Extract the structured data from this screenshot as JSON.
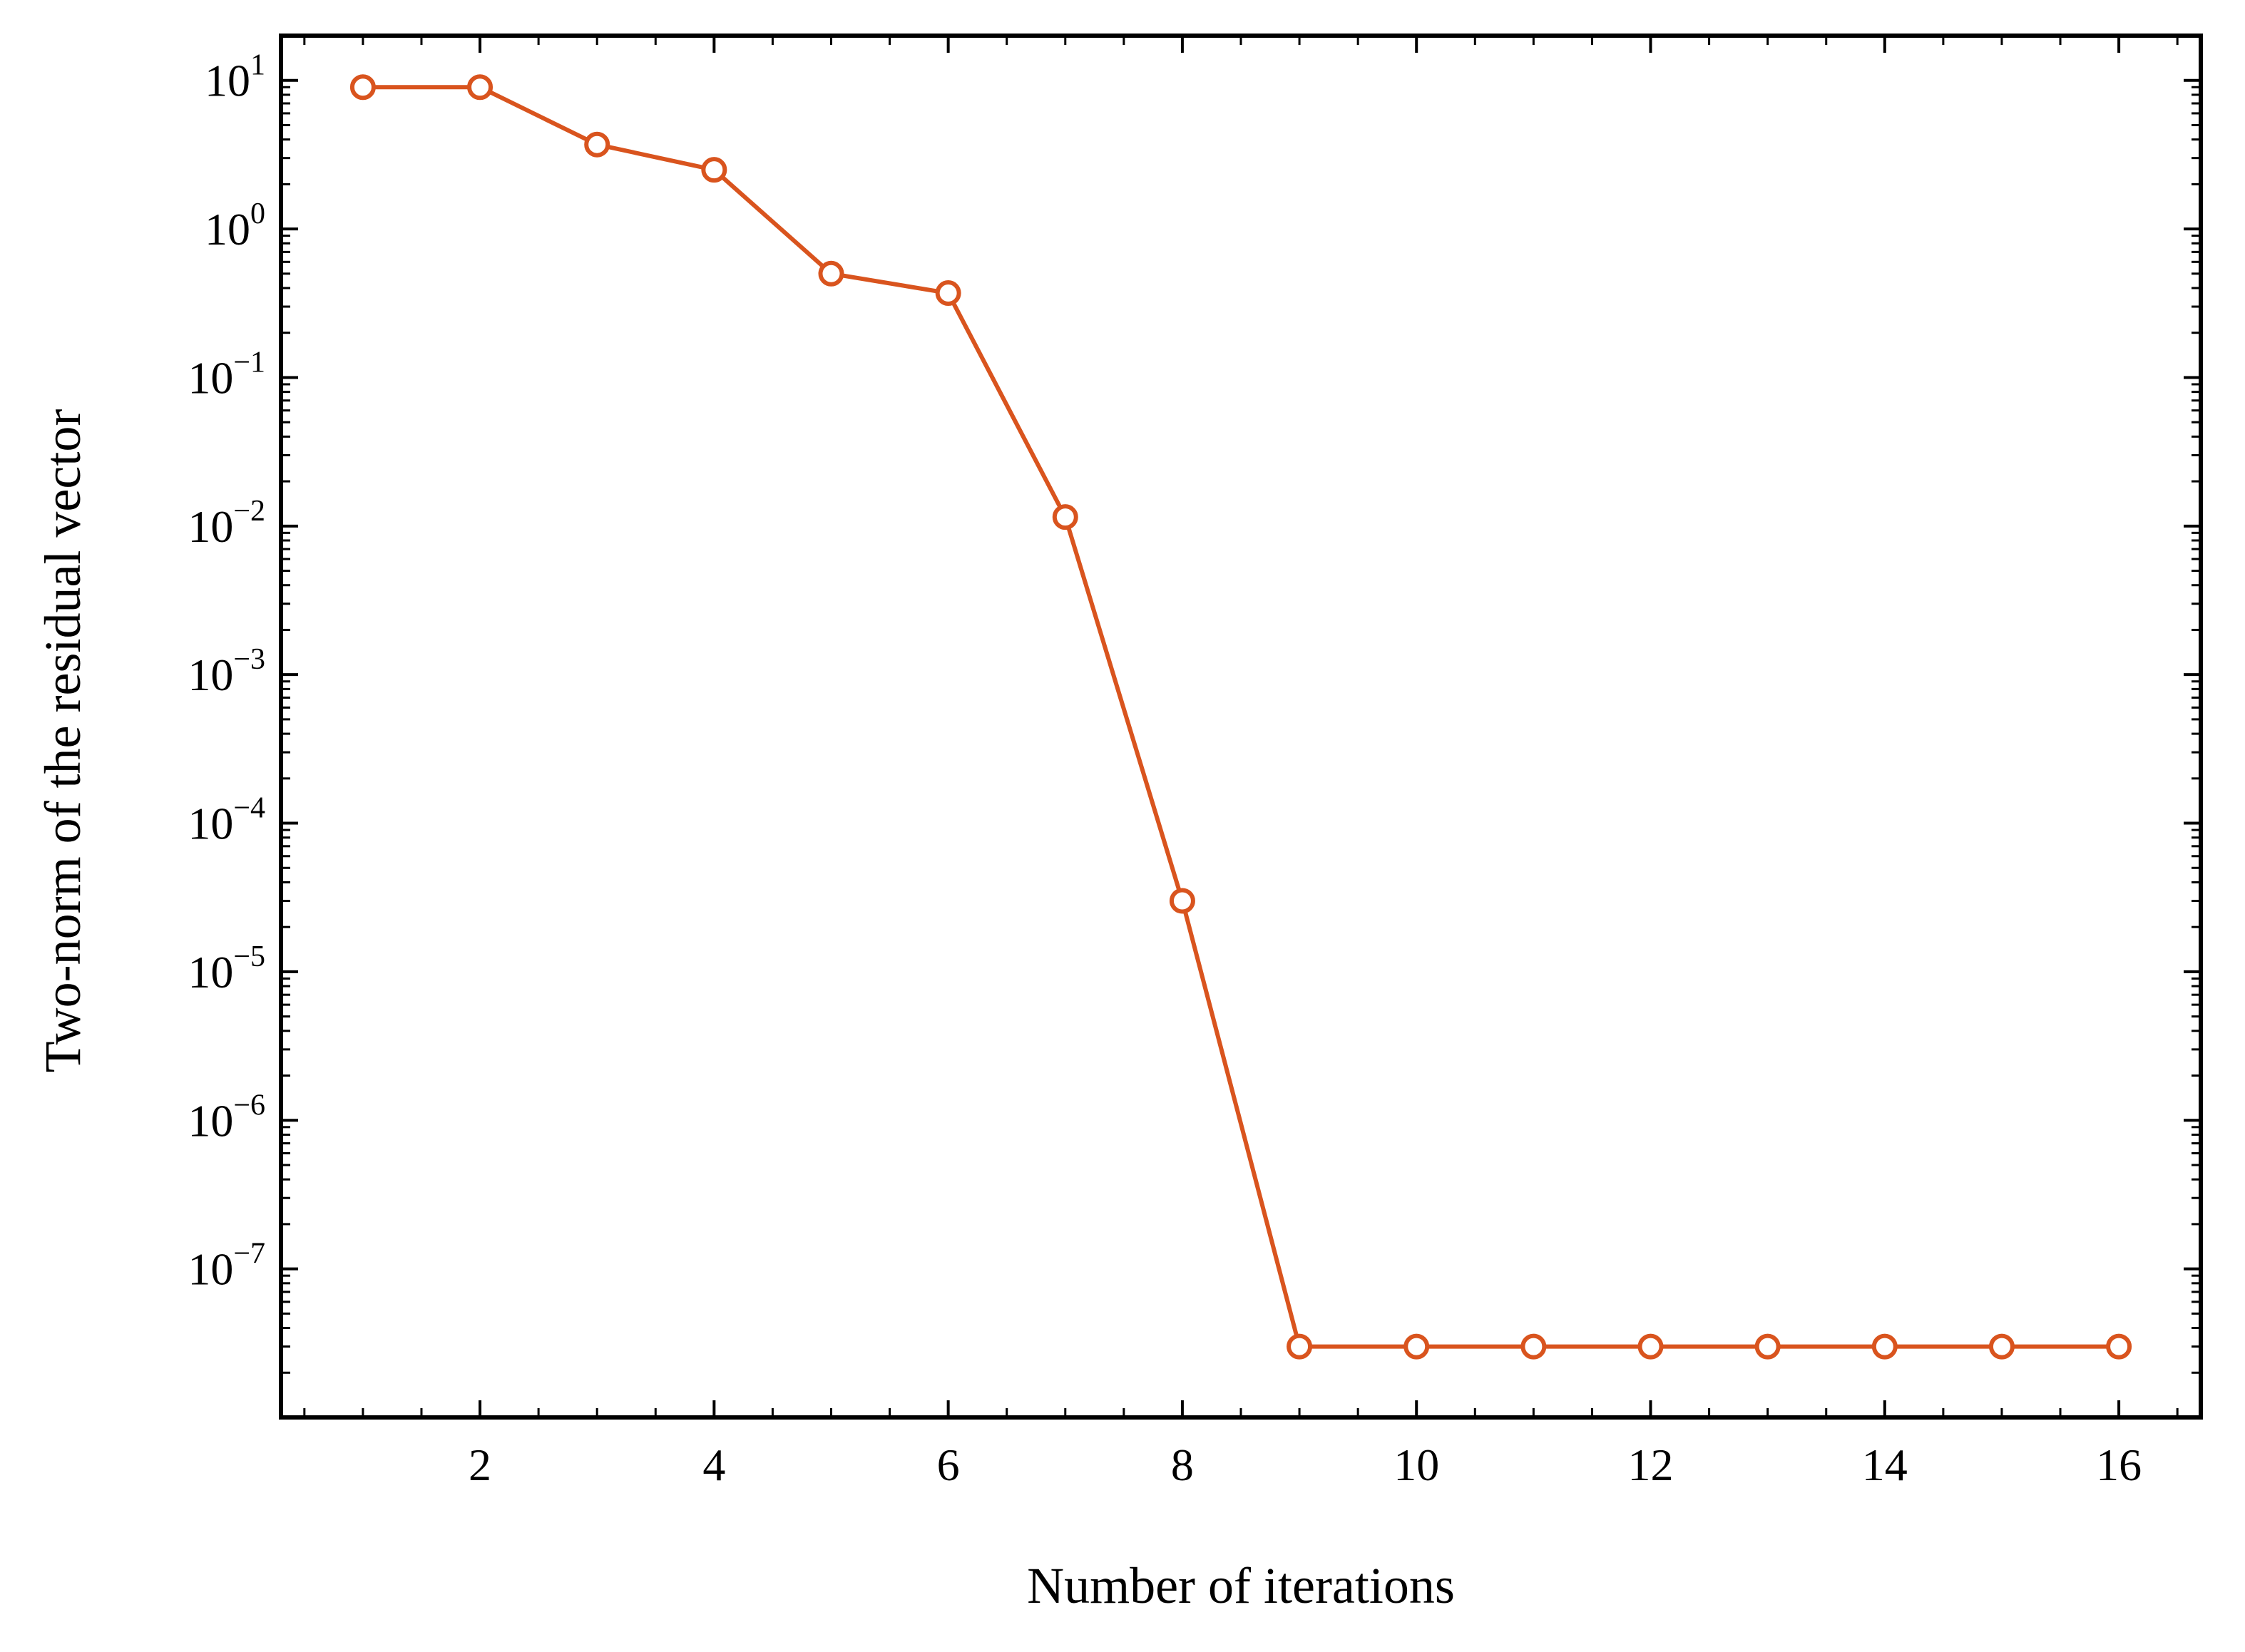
{
  "chart_data": {
    "type": "line",
    "title": "",
    "xlabel": "Number of iterations",
    "ylabel": "Two-norm of the residual vector",
    "yscale": "log",
    "xlim": [
      0.3,
      16.7
    ],
    "ylim": [
      1e-08,
      20
    ],
    "xticks": [
      2,
      4,
      6,
      8,
      10,
      12,
      14,
      16
    ],
    "xtick_labels": [
      "2",
      "4",
      "6",
      "8",
      "10",
      "12",
      "14",
      "16"
    ],
    "yticks": [
      {
        "value": 10,
        "base": "10",
        "exp": "1"
      },
      {
        "value": 1,
        "base": "10",
        "exp": "0"
      },
      {
        "value": 0.1,
        "base": "10",
        "exp": "−1"
      },
      {
        "value": 0.01,
        "base": "10",
        "exp": "−2"
      },
      {
        "value": 0.001,
        "base": "10",
        "exp": "−3"
      },
      {
        "value": 0.0001,
        "base": "10",
        "exp": "−4"
      },
      {
        "value": 1e-05,
        "base": "10",
        "exp": "−5"
      },
      {
        "value": 1e-06,
        "base": "10",
        "exp": "−6"
      },
      {
        "value": 1e-07,
        "base": "10",
        "exp": "−7"
      }
    ],
    "series": [
      {
        "name": "residual",
        "color": "#d9541e",
        "marker": "open-circle",
        "x": [
          1,
          2,
          3,
          4,
          5,
          6,
          7,
          8,
          9,
          10,
          11,
          12,
          13,
          14,
          15,
          16
        ],
        "values": [
          9,
          9,
          3.7,
          2.5,
          0.5,
          0.37,
          0.0115,
          3e-05,
          3e-08,
          3e-08,
          3e-08,
          3e-08,
          3e-08,
          3e-08,
          3e-08,
          3e-08
        ]
      }
    ],
    "grid": false,
    "legend": "none"
  }
}
